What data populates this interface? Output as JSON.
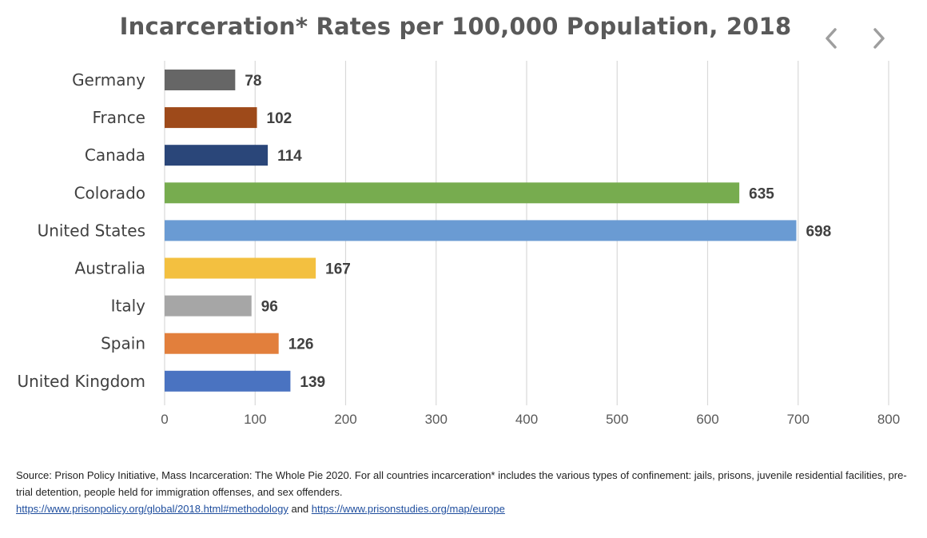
{
  "navigation": {
    "prev_icon": "chevron-left-icon",
    "next_icon": "chevron-right-icon"
  },
  "chart_data": {
    "type": "bar",
    "orientation": "horizontal",
    "title": "Incarceration* Rates per 100,000 Population, 2018",
    "categories": [
      "Germany",
      "France",
      "Canada",
      "Colorado",
      "United States",
      "Australia",
      "Italy",
      "Spain",
      "United Kingdom"
    ],
    "values": [
      78,
      102,
      114,
      635,
      698,
      167,
      96,
      126,
      139
    ],
    "data_labels": [
      "78",
      "102",
      "114",
      "635",
      "698",
      "167",
      "96",
      "126",
      "139"
    ],
    "colors": [
      "#666666",
      "#9e4a1a",
      "#2a4679",
      "#77ac4f",
      "#6a9bd3",
      "#f3c040",
      "#a6a6a6",
      "#e27f3c",
      "#4a73c1"
    ],
    "xlim": [
      0,
      800
    ],
    "xticks": [
      0,
      100,
      200,
      300,
      400,
      500,
      600,
      700,
      800
    ],
    "xtick_labels": [
      "0",
      "100",
      "200",
      "300",
      "400",
      "500",
      "600",
      "700",
      "800"
    ],
    "grid": "vertical",
    "legend": "none"
  },
  "source": {
    "text": "Source: Prison Policy Initiative, Mass Incarceration: The Whole Pie 2020. For all countries incarceration* includes the various types of confinement: jails, prisons, juvenile residential facilities, pre-trial detention, people held for immigration offenses, and sex offenders.",
    "link1": "https://www.prisonpolicy.org/global/2018.html#methodology",
    "joiner": "and",
    "link2": "https://www.prisonstudies.org/map/europe"
  }
}
